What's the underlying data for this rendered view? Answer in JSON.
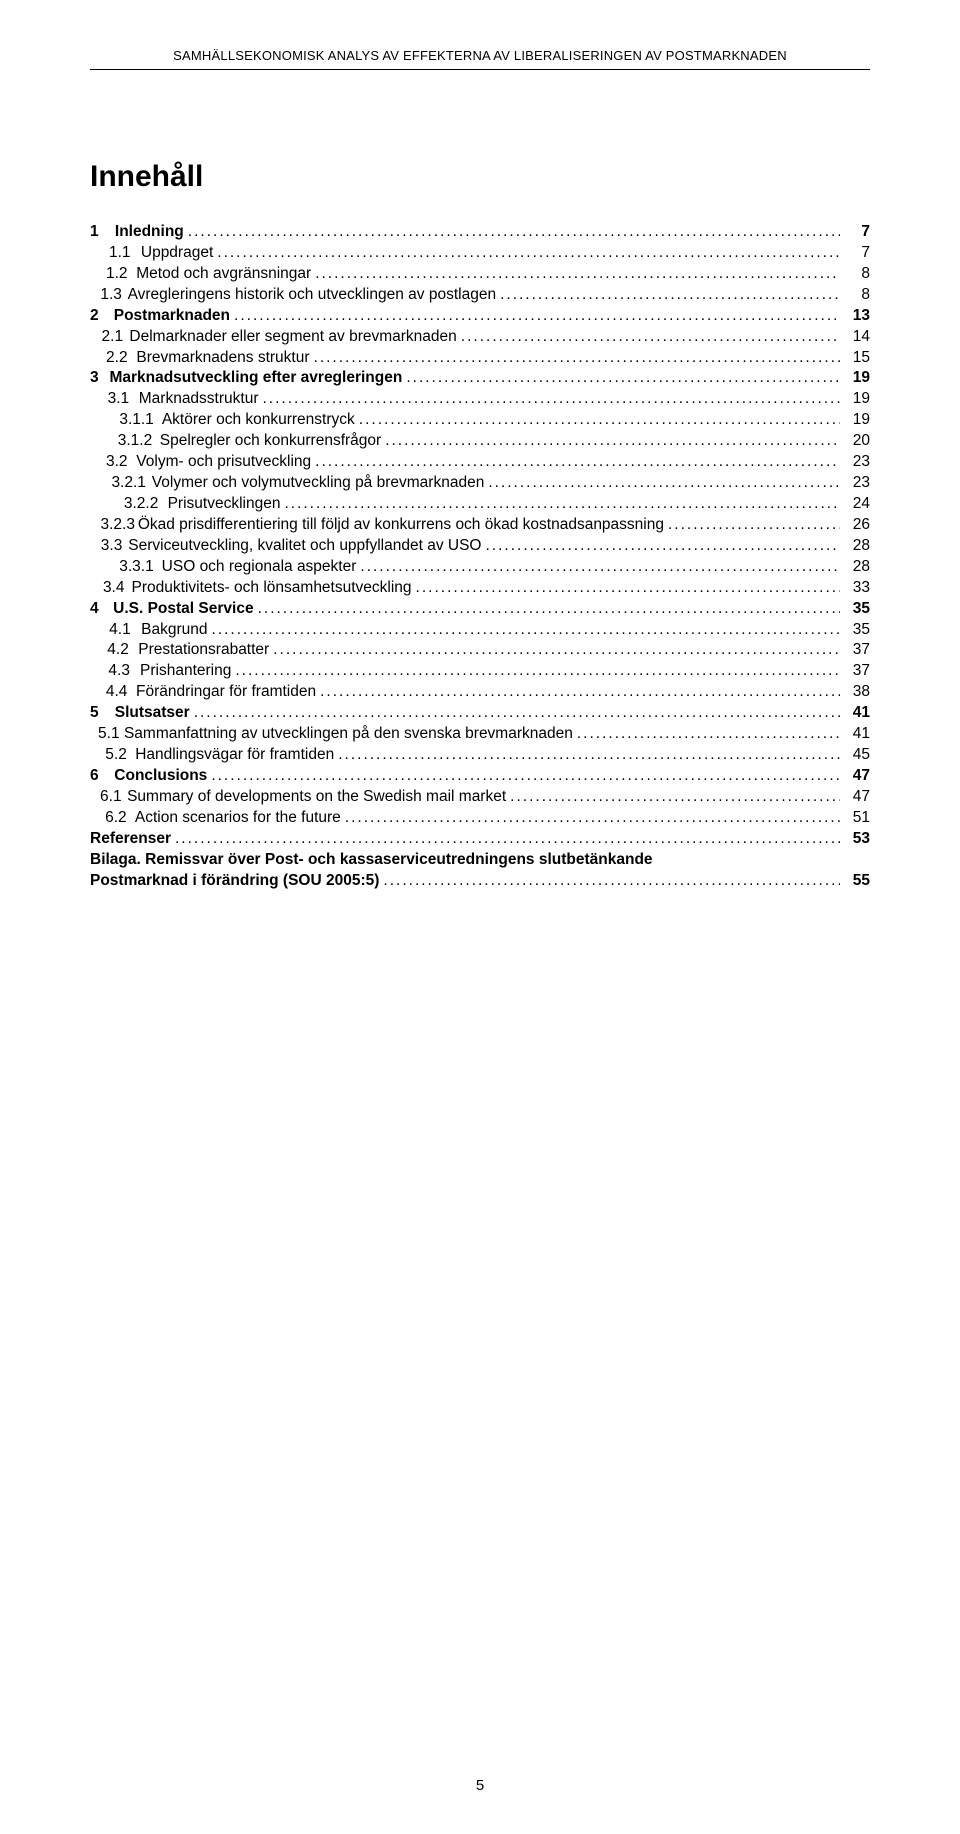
{
  "header": "SAMHÄLLSEKONOMISK ANALYS AV EFFEKTERNA AV LIBERALISERINGEN AV POSTMARKNADEN",
  "title": "Innehåll",
  "page_number": "5",
  "toc": [
    {
      "level": 0,
      "num": "1",
      "label": "Inledning",
      "page": "7",
      "bold": true
    },
    {
      "level": 1,
      "num": "1.1",
      "label": "Uppdraget",
      "page": "7"
    },
    {
      "level": 1,
      "num": "1.2",
      "label": "Metod och avgränsningar",
      "page": "8"
    },
    {
      "level": 1,
      "num": "1.3",
      "label": "Avregleringens historik och utvecklingen av postlagen",
      "page": "8"
    },
    {
      "level": 0,
      "num": "2",
      "label": "Postmarknaden",
      "page": "13",
      "bold": true
    },
    {
      "level": 1,
      "num": "2.1",
      "label": "Delmarknader eller segment av brevmarknaden",
      "page": "14"
    },
    {
      "level": 1,
      "num": "2.2",
      "label": "Brevmarknadens struktur",
      "page": "15"
    },
    {
      "level": 0,
      "num": "3",
      "label": "Marknadsutveckling efter avregleringen",
      "page": "19",
      "bold": true
    },
    {
      "level": 1,
      "num": "3.1",
      "label": "Marknadsstruktur",
      "page": "19"
    },
    {
      "level": 2,
      "num": "3.1.1",
      "label": "Aktörer och konkurrenstryck",
      "page": "19"
    },
    {
      "level": 2,
      "num": "3.1.2",
      "label": "Spelregler och konkurrensfrågor",
      "page": "20"
    },
    {
      "level": 1,
      "num": "3.2",
      "label": "Volym- och prisutveckling",
      "page": "23"
    },
    {
      "level": 2,
      "num": "3.2.1",
      "label": "Volymer och volymutveckling på brevmarknaden",
      "page": "23"
    },
    {
      "level": 2,
      "num": "3.2.2",
      "label": "Prisutvecklingen",
      "page": "24"
    },
    {
      "level": 2,
      "num": "3.2.3",
      "label": "Ökad prisdifferentiering till följd av konkurrens och ökad kostnadsanpassning",
      "page": "26"
    },
    {
      "level": 1,
      "num": "3.3",
      "label": "Serviceutveckling, kvalitet och uppfyllandet av USO",
      "page": "28"
    },
    {
      "level": 2,
      "num": "3.3.1",
      "label": "USO och regionala aspekter",
      "page": "28"
    },
    {
      "level": 1,
      "num": "3.4",
      "label": "Produktivitets- och lönsamhetsutveckling",
      "page": "33"
    },
    {
      "level": 0,
      "num": "4",
      "label": "U.S. Postal Service",
      "page": "35",
      "bold": true
    },
    {
      "level": 1,
      "num": "4.1",
      "label": "Bakgrund",
      "page": "35"
    },
    {
      "level": 1,
      "num": "4.2",
      "label": "Prestationsrabatter",
      "page": "37"
    },
    {
      "level": 1,
      "num": "4.3",
      "label": "Prishantering",
      "page": "37"
    },
    {
      "level": 1,
      "num": "4.4",
      "label": "Förändringar för framtiden",
      "page": "38"
    },
    {
      "level": 0,
      "num": "5",
      "label": "Slutsatser",
      "page": "41",
      "bold": true
    },
    {
      "level": 1,
      "num": "5.1",
      "label": "Sammanfattning av utvecklingen på den svenska brevmarknaden",
      "page": "41"
    },
    {
      "level": 1,
      "num": "5.2",
      "label": "Handlingsvägar för framtiden",
      "page": "45"
    },
    {
      "level": 0,
      "num": "6",
      "label": "Conclusions",
      "page": "47",
      "bold": true
    },
    {
      "level": 1,
      "num": "6.1",
      "label": "Summary of developments on the Swedish mail market",
      "page": "47"
    },
    {
      "level": 1,
      "num": "6.2",
      "label": "Action scenarios for the future",
      "page": "51"
    },
    {
      "level": -1,
      "num": "",
      "label": "Referenser",
      "page": "53",
      "bold": true
    }
  ],
  "bilaga": {
    "line1": "Bilaga. Remissvar över Post- och kassaserviceutredningens slutbetänkande",
    "line2_label": "Postmarknad i förändring (SOU 2005:5)",
    "line2_page": "55"
  }
}
